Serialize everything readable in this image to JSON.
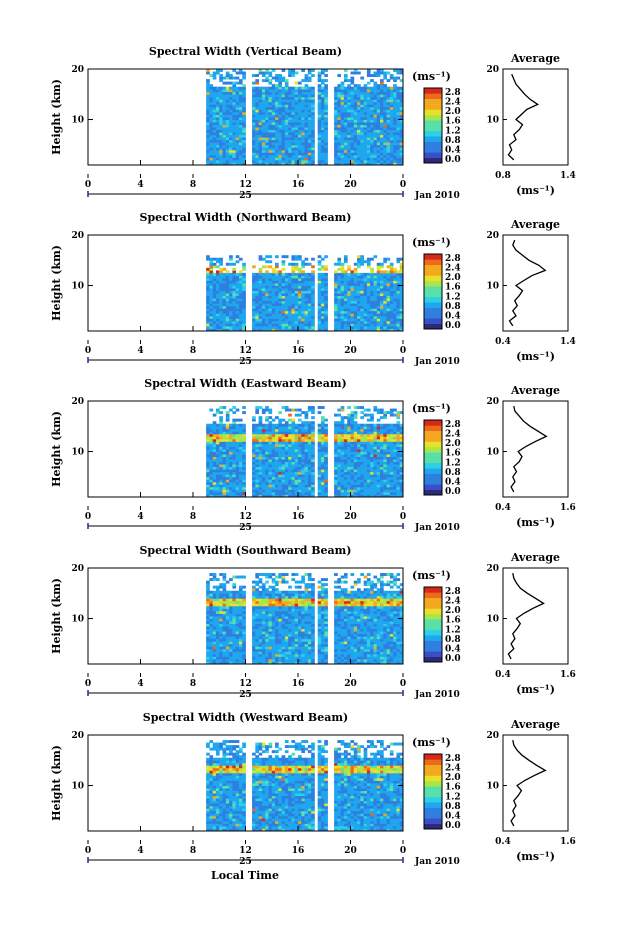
{
  "figure": {
    "xlabel": "Local Time",
    "date_label": "Jan 2010",
    "day_label": "25",
    "ylabel": "Height (km)",
    "colorbar_unit": "(ms⁻¹)",
    "colorbar_ticks": [
      "2.8",
      "2.4",
      "2.0",
      "1.6",
      "1.2",
      "0.8",
      "0.4",
      "0.0"
    ],
    "x_ticks": [
      "0",
      "4",
      "8",
      "12",
      "16",
      "20",
      "0"
    ],
    "y_ticks": [
      "20",
      "10"
    ],
    "colorscale": [
      "#2a2a78",
      "#3a4ec8",
      "#2f7fe0",
      "#1fa7ee",
      "#2ed0e8",
      "#59e0a8",
      "#a8e64a",
      "#e8e02a",
      "#f4a81e",
      "#ec6a1a",
      "#d8281c"
    ]
  },
  "chart_data": [
    {
      "type": "heatmap",
      "title": "Spectral Width (Vertical Beam)",
      "x_range": [
        0,
        24
      ],
      "y_range": [
        1,
        20
      ],
      "z_range": [
        0.0,
        3.0
      ],
      "data_start_hour": 9.0,
      "gaps_hours": [
        [
          12.0,
          12.3
        ],
        [
          17.2,
          17.5
        ],
        [
          18.2,
          18.6
        ]
      ],
      "top_km": 20,
      "layer_km": null,
      "profile": {
        "title": "Average",
        "xlabel": "(ms⁻¹)",
        "x_ticks": [
          "0.8",
          "1.4"
        ],
        "x_range": [
          0.8,
          1.4
        ],
        "y_ticks": [
          "20",
          "10"
        ],
        "heights_km": [
          2,
          3,
          4,
          5,
          6,
          7,
          8,
          9,
          10,
          11,
          12,
          13,
          14,
          15,
          16,
          17,
          18,
          19
        ],
        "values": [
          0.9,
          0.85,
          0.88,
          0.86,
          0.92,
          0.9,
          0.95,
          0.98,
          0.92,
          0.97,
          1.02,
          1.12,
          1.05,
          1.0,
          0.96,
          0.92,
          0.9,
          0.88
        ]
      }
    },
    {
      "type": "heatmap",
      "title": "Spectral Width (Northward Beam)",
      "x_range": [
        0,
        24
      ],
      "y_range": [
        1,
        20
      ],
      "z_range": [
        0.0,
        3.0
      ],
      "data_start_hour": 9.0,
      "gaps_hours": [
        [
          12.0,
          12.3
        ],
        [
          17.2,
          17.5
        ],
        [
          18.2,
          18.6
        ]
      ],
      "top_km": 16,
      "layer_km": 13,
      "profile": {
        "title": "Average",
        "xlabel": "(ms⁻¹)",
        "x_ticks": [
          "0.4",
          "1.4"
        ],
        "x_range": [
          0.4,
          1.4
        ],
        "y_ticks": [
          "20",
          "10"
        ],
        "heights_km": [
          2,
          3,
          4,
          5,
          6,
          7,
          8,
          9,
          10,
          11,
          12,
          13,
          14,
          15,
          16,
          17,
          18,
          19
        ],
        "values": [
          0.55,
          0.5,
          0.6,
          0.55,
          0.62,
          0.58,
          0.65,
          0.7,
          0.6,
          0.72,
          0.85,
          1.05,
          0.95,
          0.8,
          0.7,
          0.6,
          0.55,
          0.58
        ]
      }
    },
    {
      "type": "heatmap",
      "title": "Spectral Width (Eastward Beam)",
      "x_range": [
        0,
        24
      ],
      "y_range": [
        1,
        20
      ],
      "z_range": [
        0.0,
        3.0
      ],
      "data_start_hour": 9.0,
      "gaps_hours": [
        [
          12.0,
          12.3
        ],
        [
          17.2,
          17.5
        ],
        [
          18.2,
          18.6
        ]
      ],
      "top_km": 19,
      "layer_km": 12.5,
      "profile": {
        "title": "Average",
        "xlabel": "(ms⁻¹)",
        "x_ticks": [
          "0.4",
          "1.6"
        ],
        "x_range": [
          0.4,
          1.6
        ],
        "y_ticks": [
          "20",
          "10"
        ],
        "heights_km": [
          2,
          3,
          4,
          5,
          6,
          7,
          8,
          9,
          10,
          11,
          12,
          13,
          14,
          15,
          16,
          17,
          18,
          19
        ],
        "values": [
          0.6,
          0.55,
          0.62,
          0.58,
          0.65,
          0.6,
          0.7,
          0.75,
          0.68,
          0.82,
          1.0,
          1.2,
          1.05,
          0.9,
          0.78,
          0.7,
          0.62,
          0.6
        ]
      }
    },
    {
      "type": "heatmap",
      "title": "Spectral Width (Southward Beam)",
      "x_range": [
        0,
        24
      ],
      "y_range": [
        1,
        20
      ],
      "z_range": [
        0.0,
        3.0
      ],
      "data_start_hour": 9.0,
      "gaps_hours": [
        [
          12.0,
          12.3
        ],
        [
          17.2,
          17.5
        ],
        [
          18.2,
          18.6
        ]
      ],
      "top_km": 19,
      "layer_km": 13,
      "profile": {
        "title": "Average",
        "xlabel": "(ms⁻¹)",
        "x_ticks": [
          "0.4",
          "1.6"
        ],
        "x_range": [
          0.4,
          1.6
        ],
        "y_ticks": [
          "20",
          "10"
        ],
        "heights_km": [
          2,
          3,
          4,
          5,
          6,
          7,
          8,
          9,
          10,
          11,
          12,
          13,
          14,
          15,
          16,
          17,
          18,
          19
        ],
        "values": [
          0.55,
          0.5,
          0.6,
          0.55,
          0.62,
          0.58,
          0.66,
          0.72,
          0.65,
          0.78,
          0.95,
          1.15,
          1.0,
          0.85,
          0.72,
          0.65,
          0.6,
          0.58
        ]
      }
    },
    {
      "type": "heatmap",
      "title": "Spectral Width (Westward Beam)",
      "x_range": [
        0,
        24
      ],
      "y_range": [
        1,
        20
      ],
      "z_range": [
        0.0,
        3.0
      ],
      "data_start_hour": 9.0,
      "gaps_hours": [
        [
          12.0,
          12.3
        ],
        [
          17.2,
          17.5
        ],
        [
          18.2,
          18.6
        ]
      ],
      "top_km": 19,
      "layer_km": 13,
      "profile": {
        "title": "Average",
        "xlabel": "(ms⁻¹)",
        "x_ticks": [
          "0.4",
          "1.6"
        ],
        "x_range": [
          0.4,
          1.6
        ],
        "y_ticks": [
          "20",
          "10"
        ],
        "heights_km": [
          2,
          3,
          4,
          5,
          6,
          7,
          8,
          9,
          10,
          11,
          12,
          13,
          14,
          15,
          16,
          17,
          18,
          19
        ],
        "values": [
          0.6,
          0.55,
          0.62,
          0.58,
          0.64,
          0.6,
          0.68,
          0.74,
          0.66,
          0.8,
          0.98,
          1.18,
          1.02,
          0.88,
          0.75,
          0.66,
          0.6,
          0.58
        ]
      }
    }
  ]
}
